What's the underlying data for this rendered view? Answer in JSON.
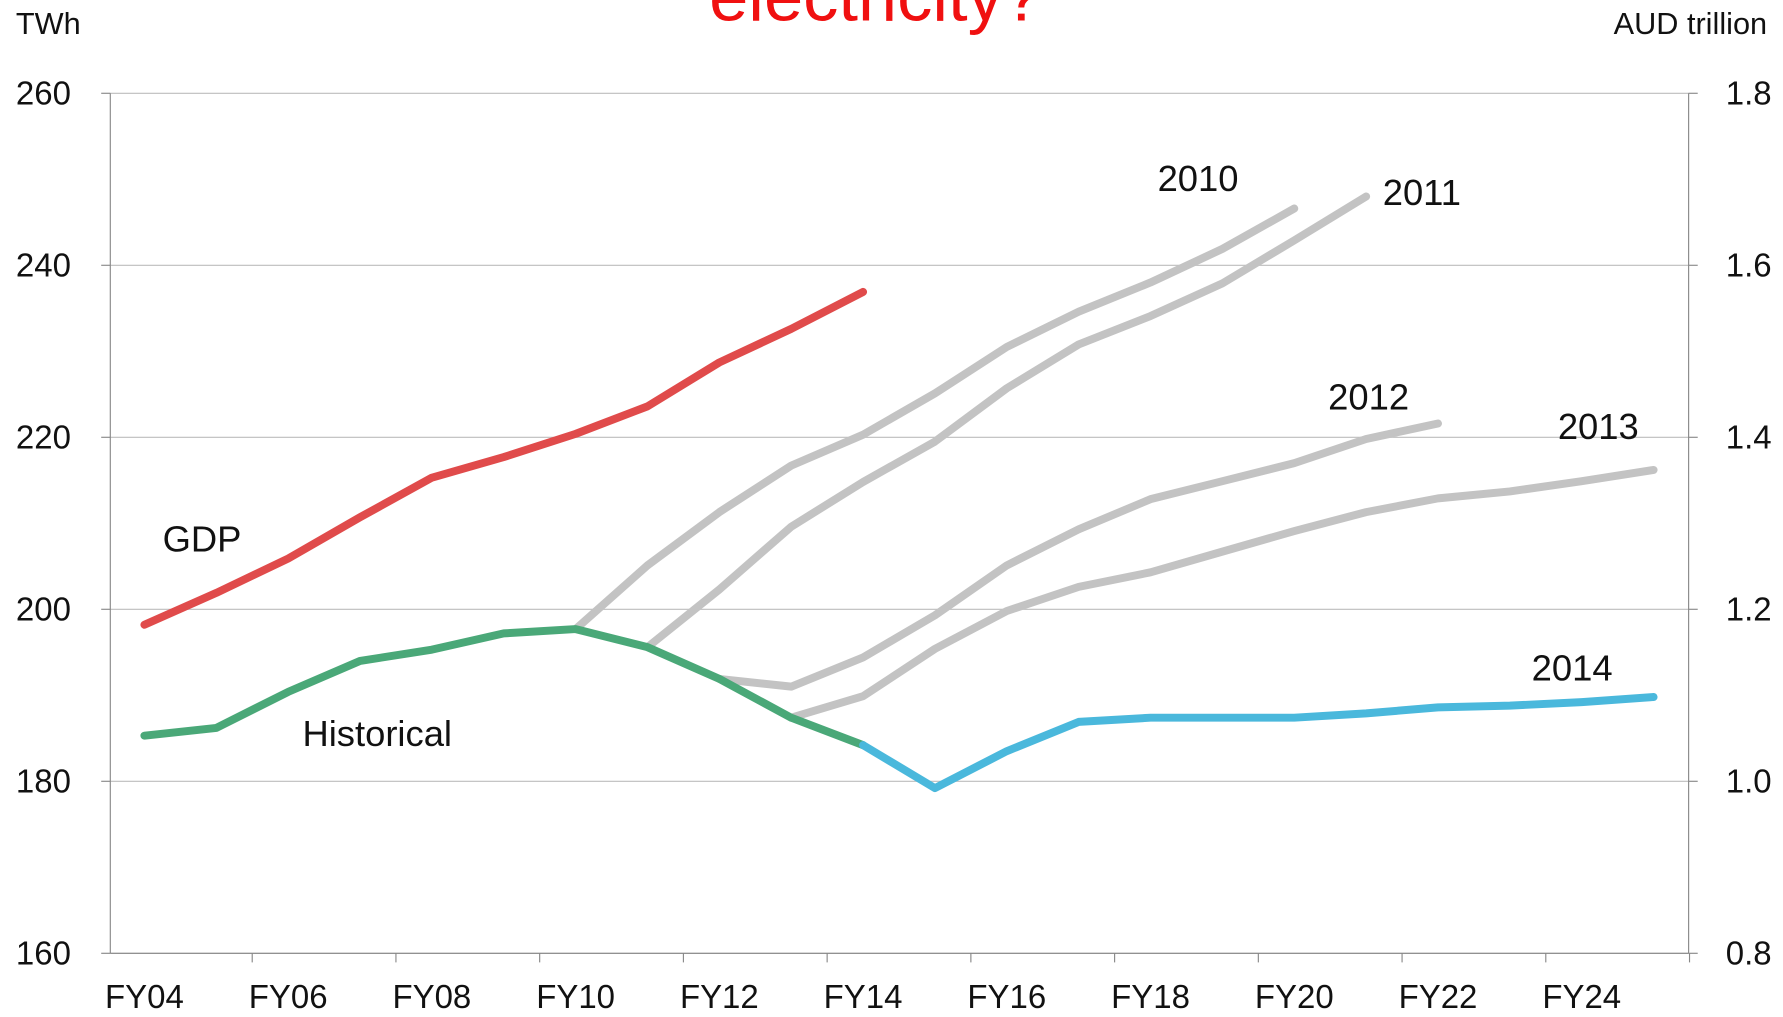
{
  "chart_data": {
    "type": "line",
    "title": "electricity?",
    "y_label": "TWh",
    "y2_label": "AUD trillion",
    "categories": [
      "FY04",
      null,
      "FY06",
      null,
      "FY08",
      null,
      "FY10",
      null,
      "FY12",
      null,
      "FY14",
      null,
      "FY16",
      null,
      "FY18",
      null,
      "FY20",
      null,
      "FY22",
      null,
      "FY24",
      null
    ],
    "ylim": [
      160,
      260
    ],
    "yticks": [
      160,
      180,
      200,
      220,
      240,
      260
    ],
    "y2lim": [
      0.8,
      1.8
    ],
    "y2ticks": [
      0.8,
      {
        "value": 1,
        "label": "1.0"
      },
      1.2,
      1.4,
      1.6,
      1.8
    ],
    "grid": true,
    "series": [
      {
        "name": "GDP",
        "color": "#e04b4b",
        "axis": "y2",
        "values": [
          1.182,
          1.219,
          1.259,
          1.307,
          1.353,
          1.377,
          1.404,
          1.436,
          1.487,
          1.526,
          1.569,
          null,
          null,
          null,
          null,
          null,
          null,
          null,
          null,
          null,
          null,
          null
        ]
      },
      {
        "name": "Historical",
        "color": "#4aa878",
        "values": [
          185.3,
          186.2,
          190.4,
          194.0,
          195.3,
          197.2,
          197.7,
          195.6,
          191.9,
          187.4,
          184.2,
          null,
          null,
          null,
          null,
          null,
          null,
          null,
          null,
          null,
          null,
          null
        ]
      },
      {
        "name": "2010",
        "color": "#c3c3c3",
        "values": [
          null,
          null,
          null,
          null,
          null,
          null,
          197.7,
          205.1,
          211.3,
          216.7,
          220.3,
          225.1,
          230.5,
          234.6,
          238.0,
          241.9,
          246.6,
          null,
          null,
          null,
          null,
          null
        ]
      },
      {
        "name": "2011",
        "color": "#c3c3c3",
        "values": [
          null,
          null,
          null,
          null,
          null,
          null,
          null,
          195.6,
          202.3,
          209.6,
          214.8,
          219.5,
          225.7,
          230.8,
          234.1,
          237.9,
          242.9,
          248.0,
          null,
          null,
          null,
          null
        ]
      },
      {
        "name": "2012",
        "color": "#c3c3c3",
        "values": [
          null,
          null,
          null,
          null,
          null,
          null,
          null,
          null,
          191.9,
          191.0,
          194.4,
          199.3,
          205.1,
          209.3,
          212.8,
          214.9,
          217.0,
          219.8,
          221.6,
          null,
          null,
          null
        ]
      },
      {
        "name": "2013",
        "color": "#c3c3c3",
        "values": [
          null,
          null,
          null,
          null,
          null,
          null,
          null,
          null,
          null,
          187.4,
          189.9,
          195.4,
          199.8,
          202.6,
          204.3,
          206.7,
          209.1,
          211.3,
          212.9,
          213.7,
          214.9,
          216.2
        ]
      },
      {
        "name": "2014",
        "color": "#4ab8dc",
        "values": [
          null,
          null,
          null,
          null,
          null,
          null,
          null,
          null,
          null,
          null,
          184.2,
          179.2,
          183.5,
          186.9,
          187.4,
          187.4,
          187.4,
          187.9,
          188.6,
          188.8,
          189.2,
          189.8
        ]
      }
    ]
  }
}
